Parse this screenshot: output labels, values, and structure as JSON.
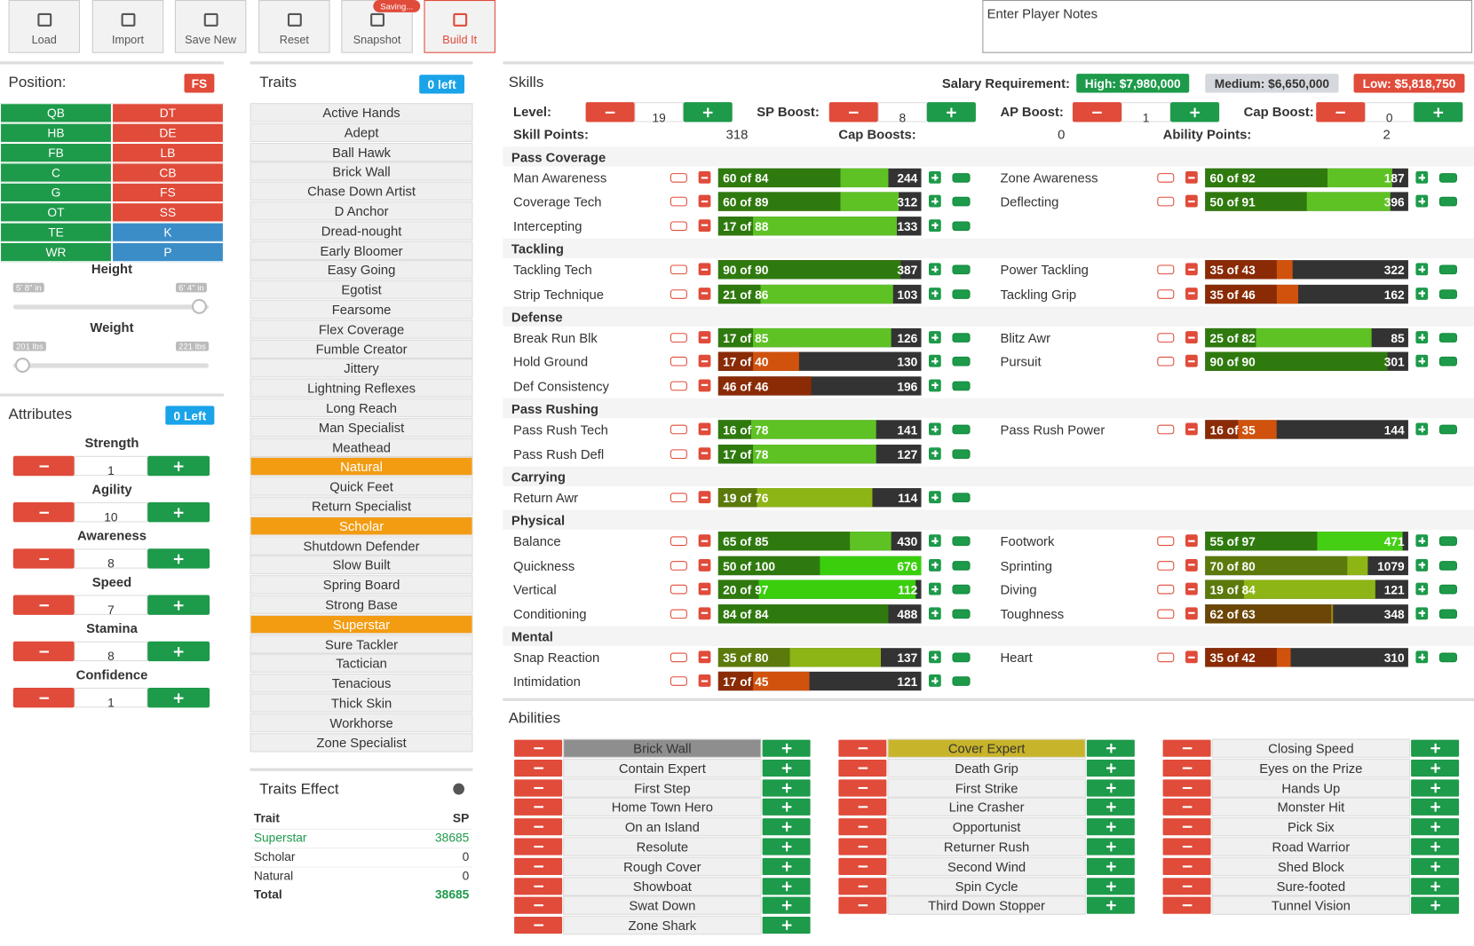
{
  "toolbar": {
    "buttons": [
      "Load",
      "Import",
      "Save New",
      "Reset",
      "Snapshot",
      "Build It"
    ],
    "saving_badge": "Saving...",
    "notes_placeholder": "Enter Player Notes"
  },
  "position": {
    "title": "Position:",
    "selected": "FS",
    "rows": [
      [
        {
          "name": "QB",
          "color": "#1d9a4a"
        },
        {
          "name": "DT",
          "color": "#e04b3a"
        }
      ],
      [
        {
          "name": "HB",
          "color": "#1d9a4a"
        },
        {
          "name": "DE",
          "color": "#e04b3a"
        }
      ],
      [
        {
          "name": "FB",
          "color": "#1d9a4a"
        },
        {
          "name": "LB",
          "color": "#e04b3a"
        }
      ],
      [
        {
          "name": "C",
          "color": "#1d9a4a"
        },
        {
          "name": "CB",
          "color": "#e04b3a"
        }
      ],
      [
        {
          "name": "G",
          "color": "#1d9a4a"
        },
        {
          "name": "FS",
          "color": "#e04b3a"
        }
      ],
      [
        {
          "name": "OT",
          "color": "#1d9a4a"
        },
        {
          "name": "SS",
          "color": "#e04b3a"
        }
      ],
      [
        {
          "name": "TE",
          "color": "#1d9a4a"
        },
        {
          "name": "K",
          "color": "#3b8dc8"
        }
      ],
      [
        {
          "name": "WR",
          "color": "#1d9a4a"
        },
        {
          "name": "P",
          "color": "#3b8dc8"
        }
      ]
    ],
    "height": {
      "label": "Height",
      "min": "5' 8\" in",
      "max": "6' 4\" in"
    },
    "weight": {
      "label": "Weight",
      "min": "201 lbs",
      "max": "221 lbs"
    }
  },
  "attributes": {
    "title": "Attributes",
    "remaining": "0 Left",
    "items": [
      {
        "name": "Strength",
        "value": 1
      },
      {
        "name": "Agility",
        "value": 10
      },
      {
        "name": "Awareness",
        "value": 8
      },
      {
        "name": "Speed",
        "value": 7
      },
      {
        "name": "Stamina",
        "value": 8
      },
      {
        "name": "Confidence",
        "value": 1
      }
    ]
  },
  "traits": {
    "title": "Traits",
    "remaining": "0 left",
    "items": [
      "Active Hands",
      "Adept",
      "Ball Hawk",
      "Brick Wall",
      "Chase Down Artist",
      "D Anchor",
      "Dread-nought",
      "Early Bloomer",
      "Easy Going",
      "Egotist",
      "Fearsome",
      "Flex Coverage",
      "Fumble Creator",
      "Jittery",
      "Lightning Reflexes",
      "Long Reach",
      "Man Specialist",
      "Meathead",
      {
        "name": "Natural",
        "color": "#f39c12"
      },
      "Quick Feet",
      "Return Specialist",
      {
        "name": "Scholar",
        "color": "#f39c12"
      },
      "Shutdown Defender",
      "Slow Built",
      "Spring Board",
      "Strong Base",
      {
        "name": "Superstar",
        "color": "#f39c12"
      },
      "Sure Tackler",
      "Tactician",
      "Tenacious",
      "Thick Skin",
      "Workhorse",
      "Zone Specialist"
    ]
  },
  "traits_effect": {
    "title": "Traits Effect",
    "columns": [
      "Trait",
      "SP"
    ],
    "rows": [
      {
        "name": "Superstar",
        "sp": 38685,
        "color": "#1d9a4a"
      },
      {
        "name": "Scholar",
        "sp": 0,
        "color": "#333333"
      },
      {
        "name": "Natural",
        "sp": 0,
        "color": "#333333"
      }
    ],
    "total": {
      "name": "Total",
      "sp": 38685
    }
  },
  "skills": {
    "title": "Skills",
    "salary_label": "Salary Requirement:",
    "salaries": [
      {
        "label": "High: $7,980,000",
        "color": "#1d9a4a"
      },
      {
        "label": "Medium: $6,650,000",
        "color": "#d5d8dc"
      },
      {
        "label": "Low: $5,818,750",
        "color": "#e04b3a"
      }
    ],
    "boosts": [
      {
        "label": "Level:",
        "value": 19
      },
      {
        "label": "SP Boost:",
        "value": 8
      },
      {
        "label": "AP Boost:",
        "value": 1
      },
      {
        "label": "Cap Boost:",
        "value": 0
      }
    ],
    "points": [
      {
        "label": "Skill Points:",
        "value": 318
      },
      {
        "label": "Cap Boosts:",
        "value": 0
      },
      {
        "label": "Ability Points:",
        "value": 2
      }
    ],
    "bar_lim": [
      0,
      100
    ],
    "groups": [
      {
        "name": "Pass Coverage",
        "rows": [
          [
            {
              "name": "Man Awareness",
              "label": "60 of 84",
              "current": 60,
              "cap": 84,
              "cost": 244,
              "color": "#2f7a0e",
              "cap_color": "#5ec224"
            },
            {
              "name": "Zone Awareness",
              "label": "60 of 92",
              "current": 60,
              "cap": 92,
              "cost": 187,
              "color": "#2f7a0e",
              "cap_color": "#5ec224"
            }
          ],
          [
            {
              "name": "Coverage Tech",
              "label": "60 of 89",
              "current": 60,
              "cap": 89,
              "cost": 312,
              "color": "#2f7a0e",
              "cap_color": "#5ec224"
            },
            {
              "name": "Deflecting",
              "label": "50 of 91",
              "current": 50,
              "cap": 91,
              "cost": 396,
              "color": "#2f7a0e",
              "cap_color": "#5ec224"
            }
          ],
          [
            {
              "name": "Intercepting",
              "label": "17 of 88",
              "current": 17,
              "cap": 88,
              "cost": 133,
              "color": "#2f7a0e",
              "cap_color": "#5ec224"
            },
            null
          ]
        ]
      },
      {
        "name": "Tackling",
        "rows": [
          [
            {
              "name": "Tackling Tech",
              "label": "90 of 90",
              "current": 90,
              "cap": 90,
              "cost": 387,
              "color": "#2f7a0e",
              "cap_color": "#5ec224"
            },
            {
              "name": "Power Tackling",
              "label": "35 of 43",
              "current": 35,
              "cap": 43,
              "cost": 322,
              "color": "#8a2b06",
              "cap_color": "#d0520d"
            }
          ],
          [
            {
              "name": "Strip Technique",
              "label": "21 of 86",
              "current": 21,
              "cap": 86,
              "cost": 103,
              "color": "#2f7a0e",
              "cap_color": "#5ec224"
            },
            {
              "name": "Tackling Grip",
              "label": "35 of 46",
              "current": 35,
              "cap": 46,
              "cost": 162,
              "color": "#8a2b06",
              "cap_color": "#d0520d"
            }
          ]
        ]
      },
      {
        "name": "Defense",
        "rows": [
          [
            {
              "name": "Break Run Blk",
              "label": "17 of 85",
              "current": 17,
              "cap": 85,
              "cost": 126,
              "color": "#2f7a0e",
              "cap_color": "#5ec224"
            },
            {
              "name": "Blitz Awr",
              "label": "25 of 82",
              "current": 25,
              "cap": 82,
              "cost": 85,
              "color": "#2f7a0e",
              "cap_color": "#5ec224"
            }
          ],
          [
            {
              "name": "Hold Ground",
              "label": "17 of 40",
              "current": 17,
              "cap": 40,
              "cost": 130,
              "color": "#8a2b06",
              "cap_color": "#d0520d"
            },
            {
              "name": "Pursuit",
              "label": "90 of 90",
              "current": 90,
              "cap": 90,
              "cost": 301,
              "color": "#2f7a0e",
              "cap_color": "#5ec224"
            }
          ],
          [
            {
              "name": "Def Consistency",
              "label": "46 of 46",
              "current": 46,
              "cap": 46,
              "cost": 196,
              "color": "#8a2b06",
              "cap_color": "#d0520d"
            },
            null
          ]
        ]
      },
      {
        "name": "Pass Rushing",
        "rows": [
          [
            {
              "name": "Pass Rush Tech",
              "label": "16 of 78",
              "current": 16,
              "cap": 78,
              "cost": 141,
              "color": "#2f7a0e",
              "cap_color": "#5ec224"
            },
            {
              "name": "Pass Rush Power",
              "label": "16 of 35",
              "current": 16,
              "cap": 35,
              "cost": 144,
              "color": "#8a2b06",
              "cap_color": "#d0520d"
            }
          ],
          [
            {
              "name": "Pass Rush Defl",
              "label": "17 of 78",
              "current": 17,
              "cap": 78,
              "cost": 127,
              "color": "#2f7a0e",
              "cap_color": "#5ec224"
            },
            null
          ]
        ]
      },
      {
        "name": "Carrying",
        "rows": [
          [
            {
              "name": "Return Awr",
              "label": "19 of 76",
              "current": 19,
              "cap": 76,
              "cost": 114,
              "color": "#5c7a0b",
              "cap_color": "#8db515"
            },
            null
          ]
        ]
      },
      {
        "name": "Physical",
        "rows": [
          [
            {
              "name": "Balance",
              "label": "65 of 85",
              "current": 65,
              "cap": 85,
              "cost": 430,
              "color": "#2f7a0e",
              "cap_color": "#5ec224"
            },
            {
              "name": "Footwork",
              "label": "55 of 97",
              "current": 55,
              "cap": 97,
              "cost": 471,
              "color": "#2f7a0e",
              "cap_color": "#45cf14"
            }
          ],
          [
            {
              "name": "Quickness",
              "label": "50 of 100",
              "current": 50,
              "cap": 100,
              "cost": 676,
              "color": "#2f7a0e",
              "cap_color": "#39cf0c"
            },
            {
              "name": "Sprinting",
              "label": "70 of 80",
              "current": 70,
              "cap": 80,
              "cost": 1079,
              "color": "#5c7a0b",
              "cap_color": "#8db515"
            }
          ],
          [
            {
              "name": "Vertical",
              "label": "20 of 97",
              "current": 20,
              "cap": 97,
              "cost": 112,
              "color": "#2f7a0e",
              "cap_color": "#39cf0c"
            },
            {
              "name": "Diving",
              "label": "19 of 84",
              "current": 19,
              "cap": 84,
              "cost": 121,
              "color": "#5c7a0b",
              "cap_color": "#8db515"
            }
          ],
          [
            {
              "name": "Conditioning",
              "label": "84 of 84",
              "current": 84,
              "cap": 84,
              "cost": 488,
              "color": "#2f7a0e",
              "cap_color": "#5ec224"
            },
            {
              "name": "Toughness",
              "label": "62 of 63",
              "current": 62,
              "cap": 63,
              "cost": 348,
              "color": "#6b4606",
              "cap_color": "#a08c08"
            }
          ]
        ]
      },
      {
        "name": "Mental",
        "rows": [
          [
            {
              "name": "Snap Reaction",
              "label": "35 of 80",
              "current": 35,
              "cap": 80,
              "cost": 137,
              "color": "#5c7a0b",
              "cap_color": "#8db515"
            },
            {
              "name": "Heart",
              "label": "35 of 42",
              "current": 35,
              "cap": 42,
              "cost": 310,
              "color": "#8a2b06",
              "cap_color": "#d0520d"
            }
          ],
          [
            {
              "name": "Intimidation",
              "label": "17 of 45",
              "current": 17,
              "cap": 45,
              "cost": 121,
              "color": "#8a2b06",
              "cap_color": "#d0520d"
            },
            null
          ]
        ]
      }
    ]
  },
  "abilities": {
    "title": "Abilities",
    "columns": [
      [
        {
          "name": "Brick Wall",
          "color": "#8e8e8e"
        },
        "Contain Expert",
        "First Step",
        "Home Town Hero",
        "On an Island",
        "Resolute",
        "Rough Cover",
        "Showboat",
        "Swat Down",
        "Zone Shark"
      ],
      [
        {
          "name": "Cover Expert",
          "color": "#c8b42a"
        },
        "Death Grip",
        "First Strike",
        "Line Crasher",
        "Opportunist",
        "Returner Rush",
        "Second Wind",
        "Spin Cycle",
        "Third Down Stopper"
      ],
      [
        "Closing Speed",
        "Eyes on the Prize",
        "Hands Up",
        "Monster Hit",
        "Pick Six",
        "Road Warrior",
        "Shed Block",
        "Sure-footed",
        "Tunnel Vision"
      ]
    ]
  }
}
